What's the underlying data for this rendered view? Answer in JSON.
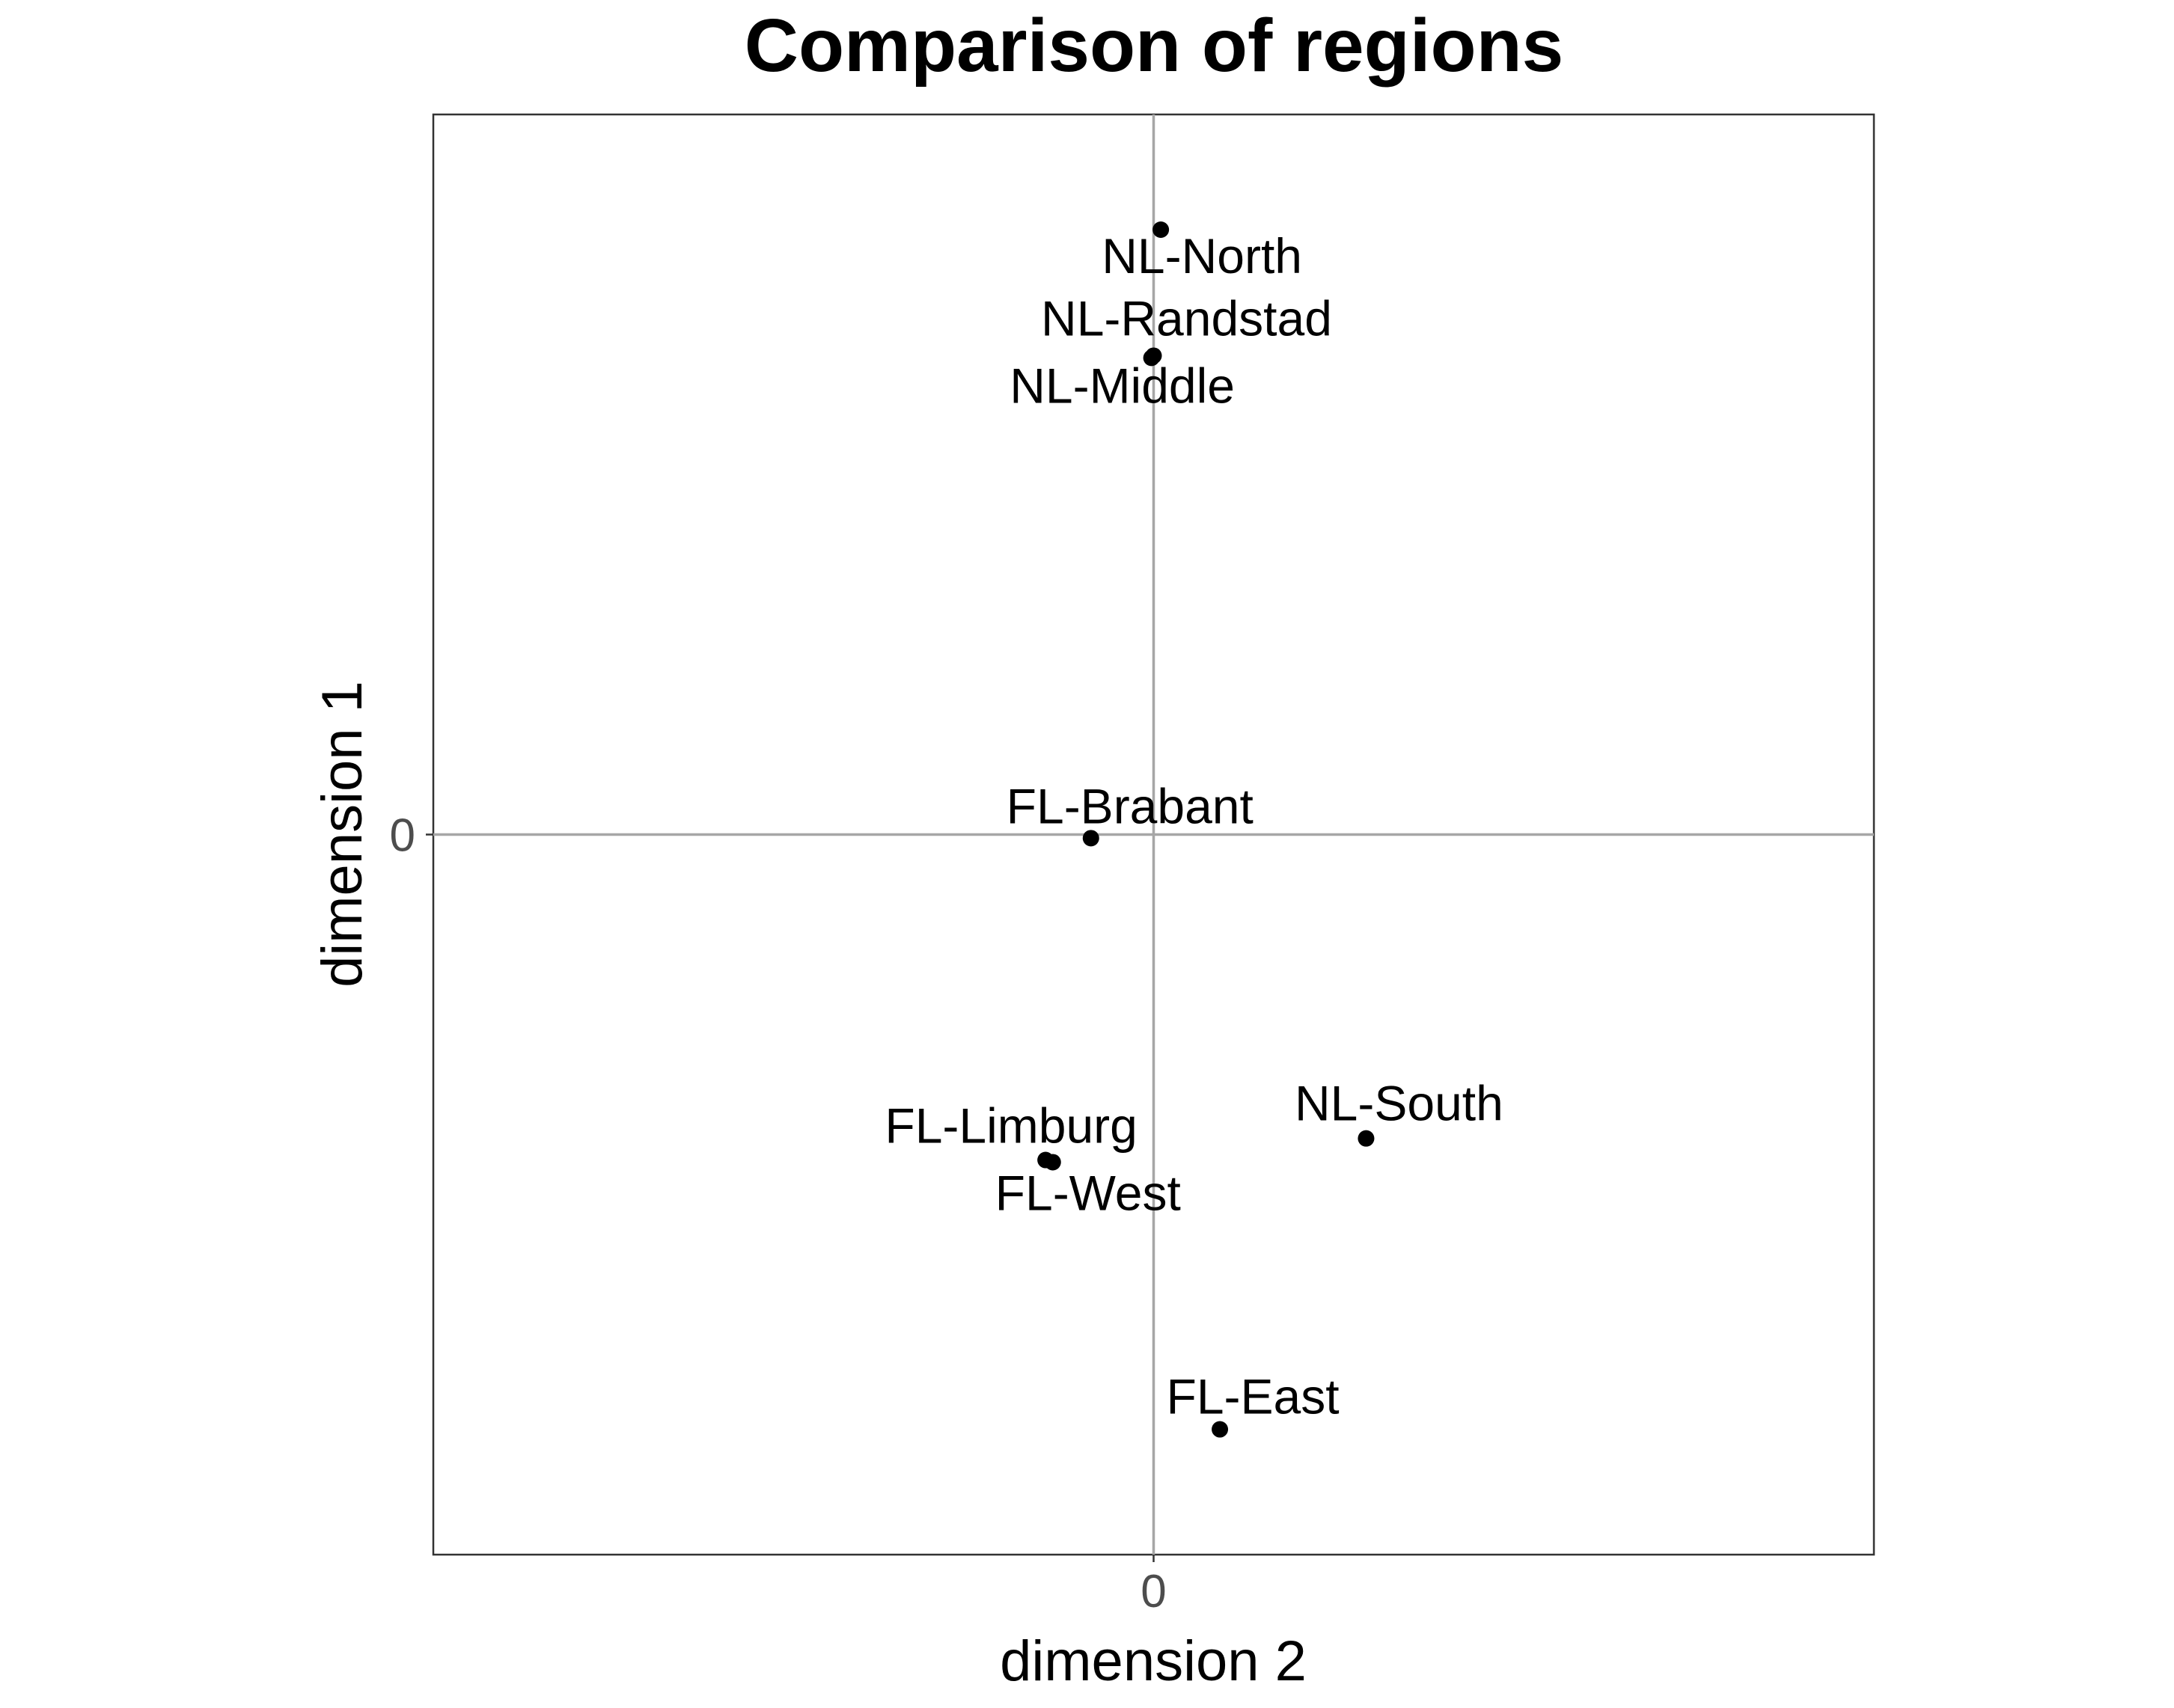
{
  "chart_data": {
    "type": "scatter",
    "title": "Comparison of regions",
    "xlabel": "dimension 2",
    "ylabel": "dimension 1",
    "xlim": [
      -1,
      1
    ],
    "ylim": [
      -1,
      1
    ],
    "x_ticks": [
      {
        "value": 0,
        "label": "0"
      }
    ],
    "y_ticks": [
      {
        "value": 0,
        "label": "0"
      }
    ],
    "grid": false,
    "reference_lines": {
      "x": 0,
      "y": 0,
      "color": "#a6a6a6"
    },
    "point_color": "#000000",
    "points": [
      {
        "label": "NL-North",
        "x": 0.01,
        "y": 0.84
      },
      {
        "label": "NL-Randstad",
        "x": 0.0,
        "y": 0.665
      },
      {
        "label": "NL-Middle",
        "x": -0.003,
        "y": 0.662
      },
      {
        "label": "FL-Brabant",
        "x": -0.087,
        "y": -0.005
      },
      {
        "label": "NL-South",
        "x": 0.295,
        "y": -0.422
      },
      {
        "label": "FL-Limburg",
        "x": -0.15,
        "y": -0.452
      },
      {
        "label": "FL-West",
        "x": -0.14,
        "y": -0.455
      },
      {
        "label": "FL-East",
        "x": 0.092,
        "y": -0.826
      }
    ]
  }
}
